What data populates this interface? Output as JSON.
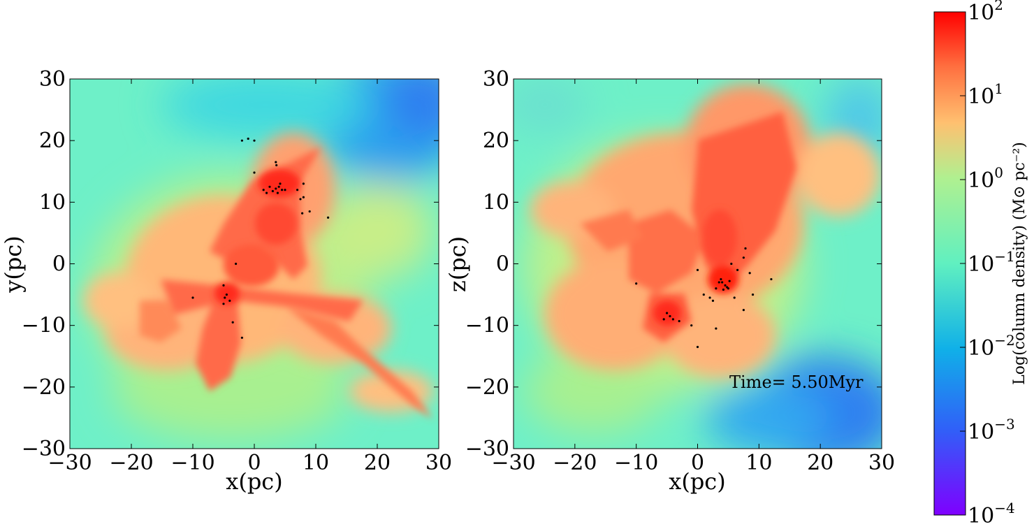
{
  "chart_data": [
    {
      "type": "heatmap",
      "panel": "xy-projection",
      "xlabel": "x(pc)",
      "ylabel": "y(pc)",
      "xlim": [
        -30,
        30
      ],
      "ylim": [
        -30,
        30
      ],
      "xticks": [
        -30,
        -20,
        -10,
        0,
        10,
        20,
        30
      ],
      "yticks": [
        -30,
        -20,
        -10,
        0,
        10,
        20,
        30
      ],
      "xtick_labels": [
        "−30",
        "−20",
        "−10",
        "0",
        "10",
        "20",
        "30"
      ],
      "ytick_labels": [
        "−30",
        "−20",
        "−10",
        "0",
        "10",
        "20",
        "30"
      ],
      "dense_regions": [
        {
          "x": 4,
          "y": 12,
          "level": "high"
        },
        {
          "x": -4.5,
          "y": -5,
          "level": "high"
        },
        {
          "x": 2,
          "y": 2,
          "level": "medium"
        },
        {
          "x": -5,
          "y": -12,
          "level": "medium"
        },
        {
          "x": 12,
          "y": -9,
          "level": "medium"
        }
      ],
      "sink_particles": [
        [
          -2,
          20
        ],
        [
          -1,
          20.3
        ],
        [
          0,
          20
        ],
        [
          3.5,
          16.5
        ],
        [
          3.6,
          16
        ],
        [
          0,
          14.8
        ],
        [
          1.5,
          12
        ],
        [
          2.5,
          12.5
        ],
        [
          3,
          11.8
        ],
        [
          3.5,
          12.2
        ],
        [
          4,
          12.5
        ],
        [
          4.5,
          12
        ],
        [
          3.8,
          11.5
        ],
        [
          4.2,
          13
        ],
        [
          5,
          12
        ],
        [
          2,
          11.5
        ],
        [
          7,
          12
        ],
        [
          8,
          13
        ],
        [
          7.5,
          10.5
        ],
        [
          8,
          10.8
        ],
        [
          7.8,
          8.2
        ],
        [
          9,
          8.5
        ],
        [
          12,
          7.5
        ],
        [
          -3,
          0
        ],
        [
          -5,
          -3.5
        ],
        [
          -4.5,
          -5
        ],
        [
          -4.8,
          -5.5
        ],
        [
          -5,
          -6.5
        ],
        [
          -4,
          -6
        ],
        [
          -10,
          -5.5
        ],
        [
          -3.5,
          -9.5
        ],
        [
          -2,
          -12
        ]
      ],
      "colormap": "rainbow",
      "color_low": "#7f00ff",
      "color_high": "#ff0000"
    },
    {
      "type": "heatmap",
      "panel": "xz-projection",
      "xlabel": "x(pc)",
      "ylabel": "z(pc)",
      "xlim": [
        -30,
        30
      ],
      "ylim": [
        -30,
        30
      ],
      "xticks": [
        -30,
        -20,
        -10,
        0,
        10,
        20,
        30
      ],
      "yticks": [
        -30,
        -20,
        -10,
        0,
        10,
        20,
        30
      ],
      "xtick_labels": [
        "−30",
        "−20",
        "−10",
        "0",
        "10",
        "20",
        "30"
      ],
      "ytick_labels": [
        "−30",
        "−20",
        "−10",
        "0",
        "10",
        "20",
        "30"
      ],
      "annotation": "Time= 5.50Myr",
      "dense_regions": [
        {
          "x": 4,
          "y": -3,
          "level": "high"
        },
        {
          "x": -4.5,
          "y": -8.5,
          "level": "high"
        },
        {
          "x": 2,
          "y": 5,
          "level": "medium"
        },
        {
          "x": -8,
          "y": 6,
          "level": "medium"
        },
        {
          "x": 10,
          "y": 15,
          "level": "medium"
        }
      ],
      "sink_particles": [
        [
          4,
          -3
        ],
        [
          4.5,
          -3.5
        ],
        [
          3.8,
          -2.5
        ],
        [
          5,
          -4
        ],
        [
          4.2,
          -4.2
        ],
        [
          3.5,
          -3
        ],
        [
          5.2,
          -2.8
        ],
        [
          4.8,
          -3.8
        ],
        [
          3,
          -4
        ],
        [
          5.5,
          0
        ],
        [
          6.5,
          -1
        ],
        [
          7.5,
          1
        ],
        [
          7.8,
          2.5
        ],
        [
          8.5,
          -1.5
        ],
        [
          9,
          -5
        ],
        [
          12,
          -2.5
        ],
        [
          7.5,
          -7.5
        ],
        [
          6,
          -5.5
        ],
        [
          0,
          -1
        ],
        [
          1,
          -5
        ],
        [
          2,
          -5.5
        ],
        [
          2.5,
          -6
        ],
        [
          -1,
          -10
        ],
        [
          0,
          -13.5
        ],
        [
          3,
          -10.5
        ],
        [
          -5,
          -8
        ],
        [
          -4.5,
          -8.5
        ],
        [
          -5.5,
          -9
        ],
        [
          -4,
          -9
        ],
        [
          -3,
          -9.3
        ],
        [
          -10,
          -3.2
        ]
      ],
      "colormap": "rainbow",
      "color_low": "#7f00ff",
      "color_high": "#ff0000"
    }
  ],
  "colorbar": {
    "label": "Log(column density) (M⊙ pc⁻²)",
    "ticks": [
      {
        "exp": "2",
        "value": 100
      },
      {
        "exp": "1",
        "value": 10
      },
      {
        "exp": "0",
        "value": 1
      },
      {
        "exp": "−1",
        "value": 0.1
      },
      {
        "exp": "−2",
        "value": 0.01
      },
      {
        "exp": "−3",
        "value": 0.001
      },
      {
        "exp": "−4",
        "value": 0.0001
      }
    ],
    "range": [
      0.0001,
      100
    ],
    "scale": "log"
  }
}
